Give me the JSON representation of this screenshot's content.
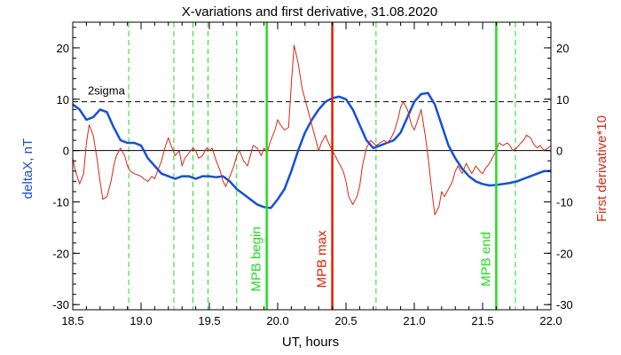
{
  "chart_data": {
    "type": "line",
    "title": "X-variations and first derivative, 31.08.2020",
    "xlabel": "UT, hours",
    "ylabel_left": "deltaX, nT",
    "ylabel_right": "First derivative*10",
    "xlim": [
      18.5,
      22.0
    ],
    "ylim": [
      -31,
      25
    ],
    "x_ticks": [
      "18.5",
      "19.0",
      "19.5",
      "20.0",
      "20.5",
      "21.0",
      "21.5",
      "22.0"
    ],
    "y_ticks_left": [
      "20",
      "10",
      "0",
      "-10",
      "-20",
      "-30"
    ],
    "y_ticks_right": [
      "20",
      "10",
      "0",
      "-10",
      "-20",
      "-30"
    ],
    "threshold": {
      "label": "2sigma",
      "value": 9.5
    },
    "zero_line": 0,
    "colors": {
      "deltaX": "#1450d8",
      "derivative": "#d82814",
      "markers": "#22dd22",
      "max_marker": "#dd2200"
    },
    "dashed_verticals": [
      18.91,
      19.24,
      19.38,
      19.49,
      19.7,
      20.72,
      21.74
    ],
    "markers": [
      {
        "label": "MPB begin",
        "x": 19.92,
        "kind": "begin"
      },
      {
        "label": "MPB max",
        "x": 20.4,
        "kind": "max"
      },
      {
        "label": "MPB end",
        "x": 21.6,
        "kind": "end"
      }
    ],
    "series": [
      {
        "key": "deltaX",
        "x": [
          18.5,
          18.55,
          18.6,
          18.65,
          18.7,
          18.75,
          18.8,
          18.85,
          18.9,
          18.95,
          19.0,
          19.05,
          19.1,
          19.15,
          19.2,
          19.25,
          19.3,
          19.35,
          19.4,
          19.45,
          19.5,
          19.55,
          19.6,
          19.65,
          19.7,
          19.75,
          19.8,
          19.85,
          19.9,
          19.95,
          20.0,
          20.05,
          20.1,
          20.15,
          20.2,
          20.25,
          20.3,
          20.35,
          20.4,
          20.45,
          20.5,
          20.55,
          20.6,
          20.65,
          20.7,
          20.75,
          20.8,
          20.85,
          20.9,
          20.95,
          21.0,
          21.05,
          21.1,
          21.15,
          21.2,
          21.25,
          21.3,
          21.35,
          21.4,
          21.45,
          21.5,
          21.55,
          21.6,
          21.65,
          21.7,
          21.75,
          21.8,
          21.85,
          21.9,
          21.95,
          22.0
        ],
        "values": [
          9.0,
          8.0,
          6.0,
          6.5,
          8.0,
          7.5,
          4.5,
          2.0,
          1.5,
          1.5,
          1.0,
          -1.5,
          -3.0,
          -4.5,
          -5.0,
          -5.5,
          -5.0,
          -5.0,
          -5.5,
          -5.0,
          -5.0,
          -5.2,
          -5.0,
          -6.0,
          -7.5,
          -8.5,
          -9.5,
          -10.5,
          -11.0,
          -11.2,
          -9.5,
          -7.5,
          -4.0,
          0.0,
          3.5,
          6.0,
          8.0,
          9.5,
          10.2,
          10.5,
          10.0,
          8.0,
          5.0,
          2.0,
          0.5,
          1.0,
          1.5,
          2.0,
          3.5,
          6.5,
          9.5,
          11.0,
          11.2,
          9.0,
          5.0,
          1.0,
          -1.5,
          -3.5,
          -5.0,
          -6.0,
          -6.5,
          -6.8,
          -6.7,
          -6.5,
          -6.3,
          -6.0,
          -5.5,
          -5.0,
          -4.5,
          -4.0,
          -4.0
        ]
      },
      {
        "key": "derivative",
        "x": [
          18.5,
          18.52,
          18.55,
          18.58,
          18.6,
          18.62,
          18.65,
          18.68,
          18.7,
          18.72,
          18.75,
          18.78,
          18.8,
          18.82,
          18.85,
          18.88,
          18.9,
          18.92,
          18.95,
          18.98,
          19.0,
          19.02,
          19.05,
          19.08,
          19.1,
          19.12,
          19.15,
          19.18,
          19.2,
          19.22,
          19.25,
          19.28,
          19.3,
          19.32,
          19.35,
          19.38,
          19.4,
          19.42,
          19.45,
          19.48,
          19.5,
          19.52,
          19.55,
          19.58,
          19.6,
          19.62,
          19.65,
          19.68,
          19.7,
          19.72,
          19.75,
          19.78,
          19.8,
          19.82,
          19.85,
          19.88,
          19.9,
          19.92,
          19.95,
          19.98,
          20.0,
          20.02,
          20.05,
          20.08,
          20.1,
          20.12,
          20.15,
          20.18,
          20.2,
          20.22,
          20.25,
          20.28,
          20.3,
          20.32,
          20.35,
          20.38,
          20.4,
          20.42,
          20.45,
          20.48,
          20.5,
          20.52,
          20.55,
          20.58,
          20.6,
          20.62,
          20.65,
          20.68,
          20.7,
          20.72,
          20.75,
          20.78,
          20.8,
          20.82,
          20.85,
          20.88,
          20.9,
          20.92,
          20.95,
          20.98,
          21.0,
          21.02,
          21.05,
          21.08,
          21.1,
          21.12,
          21.15,
          21.18,
          21.2,
          21.22,
          21.25,
          21.28,
          21.3,
          21.32,
          21.35,
          21.38,
          21.4,
          21.42,
          21.45,
          21.48,
          21.5,
          21.52,
          21.55,
          21.58,
          21.6,
          21.62,
          21.65,
          21.68,
          21.7,
          21.72,
          21.75,
          21.78,
          21.8,
          21.82,
          21.85,
          21.88,
          21.9,
          21.92,
          21.95,
          21.98,
          22.0
        ],
        "values": [
          -1.5,
          -4.0,
          -6.5,
          -4.5,
          1.5,
          5.0,
          3.0,
          -2.0,
          -6.0,
          -9.5,
          -9.0,
          -6.0,
          -3.0,
          -1.0,
          0.5,
          -1.0,
          -3.0,
          -4.0,
          -4.5,
          -4.8,
          -5.0,
          -5.5,
          -6.0,
          -5.0,
          -5.5,
          -4.0,
          -2.0,
          1.0,
          2.5,
          1.0,
          -1.0,
          0.0,
          -3.0,
          -1.5,
          -0.5,
          0.5,
          0.0,
          -1.5,
          -1.0,
          0.5,
          0.0,
          0.5,
          -2.0,
          -4.0,
          -6.0,
          -7.0,
          -5.0,
          -3.0,
          -1.0,
          0.0,
          -2.0,
          -3.0,
          -1.0,
          1.0,
          0.5,
          -1.0,
          0.5,
          -0.5,
          2.0,
          4.0,
          6.0,
          5.0,
          4.0,
          4.5,
          13.0,
          20.5,
          17.0,
          12.0,
          10.0,
          8.0,
          5.0,
          2.0,
          0.0,
          1.5,
          3.0,
          1.0,
          0.0,
          -1.0,
          -2.5,
          -4.0,
          -6.0,
          -9.0,
          -10.5,
          -9.0,
          -7.0,
          -3.0,
          0.5,
          2.0,
          1.5,
          1.0,
          1.5,
          2.0,
          1.5,
          2.0,
          3.5,
          6.0,
          8.5,
          9.5,
          8.0,
          5.0,
          4.0,
          5.5,
          8.0,
          3.0,
          -1.0,
          -6.0,
          -12.5,
          -11.0,
          -8.0,
          -9.0,
          -7.5,
          -6.0,
          -4.0,
          -3.0,
          -4.5,
          -2.5,
          -3.5,
          -4.5,
          -3.0,
          -4.0,
          -4.5,
          -3.5,
          -2.5,
          -1.0,
          0.0,
          1.5,
          1.0,
          1.5,
          1.0,
          0.0,
          0.5,
          1.5,
          2.0,
          3.0,
          2.5,
          1.0,
          0.5,
          1.0,
          0.0,
          0.5,
          1.0
        ]
      }
    ]
  }
}
